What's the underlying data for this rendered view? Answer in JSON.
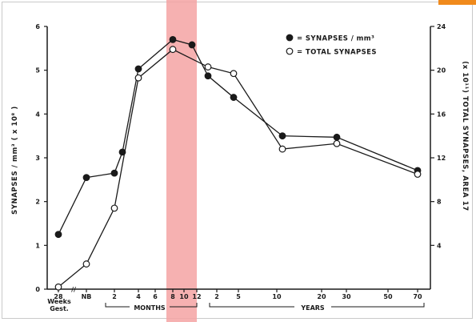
{
  "chart_data": {
    "type": "line",
    "y_left": {
      "label": "SYNAPSES / mm³ ( x 10⁸ )",
      "range": [
        0,
        6
      ],
      "ticks": [
        "0",
        "1",
        "2",
        "3",
        "4",
        "5",
        "6"
      ]
    },
    "y_right": {
      "label": "(x 10¹¹) TOTAL SYNAPSES, AREA 17",
      "range": [
        0,
        24
      ],
      "ticks": [
        "4",
        "8",
        "12",
        "16",
        "20",
        "24"
      ]
    },
    "x_axis": {
      "ticks": [
        {
          "id": "gest",
          "label": "28"
        },
        {
          "id": "nb",
          "label": "NB"
        },
        {
          "id": "m2",
          "label": "2"
        },
        {
          "id": "m4",
          "label": "4"
        },
        {
          "id": "m6",
          "label": "6"
        },
        {
          "id": "m8",
          "label": "8"
        },
        {
          "id": "m10",
          "label": "10"
        },
        {
          "id": "m12",
          "label": "12"
        },
        {
          "id": "y2",
          "label": "2"
        },
        {
          "id": "y5",
          "label": "5"
        },
        {
          "id": "y10",
          "label": "10"
        },
        {
          "id": "y20",
          "label": "20"
        },
        {
          "id": "y30",
          "label": "30"
        },
        {
          "id": "y50",
          "label": "50"
        },
        {
          "id": "y70",
          "label": "70"
        }
      ],
      "gest_sublabels": [
        "Weeks",
        "Gest."
      ],
      "break_mark": "//",
      "group_labels": {
        "months": "MONTHS",
        "years": "YEARS"
      }
    },
    "legend": {
      "position": "top-right",
      "items": [
        {
          "marker": "filled-circle",
          "text": "= SYNAPSES / mm³"
        },
        {
          "marker": "open-circle",
          "text": "= TOTAL SYNAPSES"
        }
      ]
    },
    "highlight_band": {
      "from": "8 months",
      "to": "12 months",
      "color": "#f4a3a3"
    },
    "series": [
      {
        "name": "SYNAPSES / mm³",
        "axis": "left",
        "marker": "filled",
        "points": [
          {
            "x": "28 weeks gest.",
            "y": 1.25
          },
          {
            "x": "NB",
            "y": 2.55
          },
          {
            "x": "2 months",
            "y": 2.65
          },
          {
            "x": "2.5 months",
            "y": 3.13
          },
          {
            "x": "4 months",
            "y": 5.03
          },
          {
            "x": "8 months",
            "y": 5.7
          },
          {
            "x": "11 months",
            "y": 5.58
          },
          {
            "x": "15 months",
            "y": 4.87
          },
          {
            "x": "4.5 years",
            "y": 4.38
          },
          {
            "x": "11 years",
            "y": 3.5
          },
          {
            "x": "26 years",
            "y": 3.47
          },
          {
            "x": "70 years",
            "y": 2.71
          }
        ]
      },
      {
        "name": "TOTAL SYNAPSES",
        "axis": "right",
        "marker": "open",
        "points": [
          {
            "x": "28 weeks gest.",
            "y": 0.2
          },
          {
            "x": "NB",
            "y": 2.3
          },
          {
            "x": "2 months",
            "y": 7.4
          },
          {
            "x": "4 months",
            "y": 19.3
          },
          {
            "x": "8 months",
            "y": 21.9
          },
          {
            "x": "13 months",
            "y": 20.3
          },
          {
            "x": "4.5 years",
            "y": 19.7
          },
          {
            "x": "11 years",
            "y": 12.8
          },
          {
            "x": "26 years",
            "y": 13.3
          },
          {
            "x": "70 years",
            "y": 10.5
          }
        ]
      }
    ]
  }
}
